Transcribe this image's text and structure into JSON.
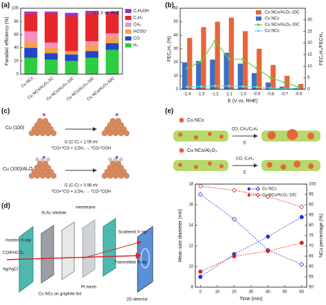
{
  "panel_labels": [
    "(a)",
    "(b)",
    "(c)",
    "(d)",
    "(e)"
  ],
  "chart_data": [
    {
      "type": "stacked_bar",
      "annotation": "-1.1 V vs. RHE",
      "y_label": "Faradaic efficiency (%)",
      "categories": [
        "Cu NCs",
        "Cu NCs/Al₂O₃-5C",
        "Cu NCs/Al₂O₃-10C",
        "Cu NCs/Al₂O₃-20C",
        "Cu NCs/Al₂O₃-50C"
      ],
      "series": [
        {
          "name": "H₂",
          "color": "#2ecc40",
          "values": [
            25,
            22,
            20,
            25,
            37
          ]
        },
        {
          "name": "CO",
          "color": "#2346c8",
          "values": [
            15,
            10,
            10,
            10,
            10
          ]
        },
        {
          "name": "HCOO⁻",
          "color": "#f5a04a",
          "values": [
            10,
            8,
            5,
            10,
            10
          ]
        },
        {
          "name": "CH₄",
          "color": "#f48fc0",
          "values": [
            15,
            8,
            0,
            5,
            5
          ]
        },
        {
          "name": "C₂H₄",
          "color": "#e8262a",
          "values": [
            27,
            45,
            53,
            43,
            30
          ]
        },
        {
          "name": "C₂H₅OH",
          "color": "#9b30d0",
          "values": [
            3,
            2,
            5,
            3,
            3
          ]
        }
      ],
      "ylim": [
        0,
        100
      ],
      "yticks": [
        0,
        20,
        40,
        60,
        80,
        100
      ]
    },
    {
      "type": "bar_line",
      "x_label": "E (V vs. RHE)",
      "y_label": "FEC₂H₄ (%)",
      "y2_label": "FEC₂H₄/FECH₄",
      "categories": [
        "-1.4",
        "-1.3",
        "-1.2",
        "-1.1",
        "-1.0",
        "-0.9",
        "-0.8",
        "-0.7",
        "-0.6"
      ],
      "series": [
        {
          "name": "Cu NCs/Al₂O₃-10C",
          "kind": "bar",
          "color": "#e8643a",
          "values": [
            38,
            46,
            50,
            53,
            43,
            30,
            18,
            10,
            4
          ]
        },
        {
          "name": "Cu NCs",
          "kind": "bar",
          "color": "#3a6fc4",
          "values": [
            20,
            21,
            22,
            27,
            19,
            12,
            5,
            2,
            1
          ]
        },
        {
          "name": "Cu NCs/Al₂O₃-10C",
          "kind": "line",
          "axis": "y2",
          "color": "#5bd144",
          "values": [
            9,
            12,
            21,
            13,
            13,
            9,
            5,
            3,
            1
          ]
        },
        {
          "name": "Cu NCs",
          "kind": "line",
          "axis": "y2",
          "color": "#5fe0e0",
          "values": [
            1,
            1.2,
            1.5,
            1.5,
            1.2,
            1,
            0.5,
            0.3,
            0.2
          ]
        }
      ],
      "ylim": [
        0,
        60
      ],
      "yticks": [
        0,
        10,
        20,
        30,
        40,
        50,
        60
      ],
      "y2lim": [
        0,
        35
      ],
      "y2ticks": [
        0,
        5,
        10,
        15,
        20,
        25,
        30
      ]
    },
    {
      "type": "dual_line",
      "x_label": "Time (min)",
      "y_label": "Mean size diameter (nm)",
      "y2_label": "NCu percentage (%)",
      "x": [
        0,
        20,
        40,
        60
      ],
      "xlim": [
        -3,
        63
      ],
      "xticks": [
        0,
        10,
        20,
        30,
        40,
        50,
        60
      ],
      "ylim": [
        8,
        18
      ],
      "yticks": [
        8,
        10,
        12,
        14,
        16,
        18
      ],
      "y2lim": [
        50,
        100
      ],
      "y2ticks": [
        50,
        55,
        60,
        65,
        70,
        75,
        80,
        85,
        90,
        95,
        100
      ],
      "series": [
        {
          "name": "Cu NCs",
          "color": "#2233cc",
          "values": [
            9.0,
            11.2,
            12.9,
            14.8
          ],
          "y2_values": [
            95,
            83,
            68,
            61
          ]
        },
        {
          "name": "Cu NCs/Al₂O₃-10C",
          "color": "#e02020",
          "values": [
            9.5,
            11.0,
            11.5,
            12.3
          ],
          "y2_values": [
            99,
            97,
            94,
            89
          ]
        }
      ]
    }
  ],
  "diagram_c": {
    "top_label": "Cu (100)",
    "top_energy": "G (C-C) = 1.09 eV",
    "top_reaction": "*CO+*CO + 1/2H₂ → *CO-*COH",
    "bottom_label": "Cu (100)/Al₂O₃",
    "bottom_energy": "G (C-C) = 0.98 eV",
    "bottom_reaction": "*CO+*CO + 1/2H₂ → *CO-*COH"
  },
  "diagram_d": {
    "window": "Si₃N₄ window",
    "membrane": "membrane",
    "incident": "Incident X-ray",
    "electrolyte": "CO/KHCO₃",
    "reference": "Ag/AgCl",
    "scattered": "Scattered X-ray",
    "transmitted": "Transmitted X-ray",
    "sample": "Cu NCs on graphite foil",
    "counter": "Pt mesh",
    "detector": "2D detector"
  },
  "diagram_e": {
    "top_label": "Cu NCs",
    "top_products": "CO, CH₄/C₂H₄",
    "top_potential": "E",
    "bottom_label": "Cu NCs/Al₂O₃",
    "bottom_products": "CO, C₂H₄",
    "bottom_potential": "E"
  }
}
